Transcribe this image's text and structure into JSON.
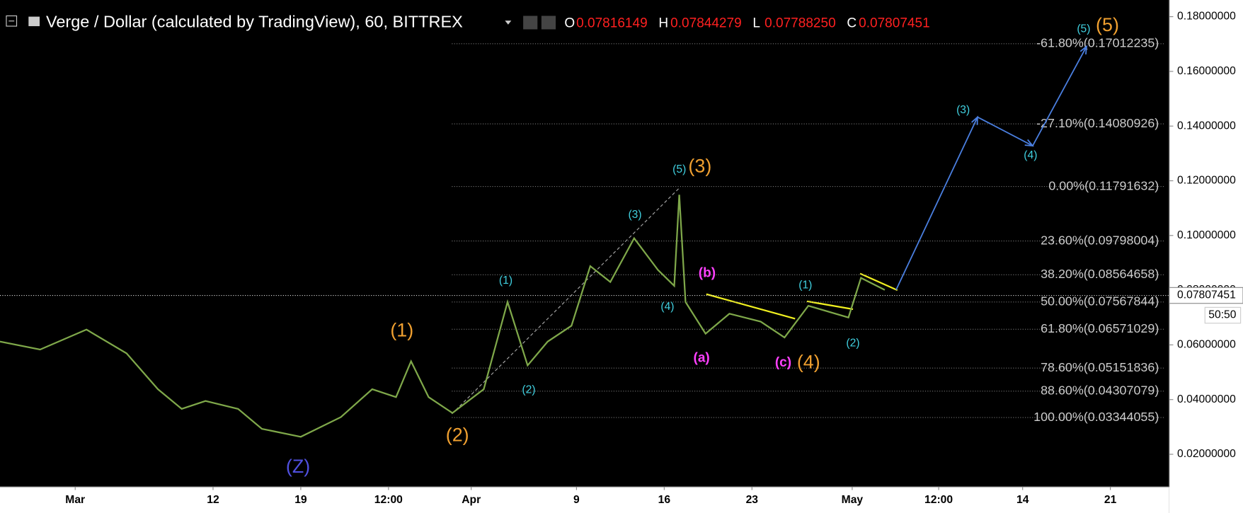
{
  "header": {
    "title": "Verge / Dollar (calculated by TradingView), 60, BITTREX",
    "ohlc": [
      {
        "key": "O",
        "value": "0.07816149"
      },
      {
        "key": "H",
        "value": "0.07844279"
      },
      {
        "key": "L",
        "value": "0.07788250"
      },
      {
        "key": "C",
        "value": "0.07807451"
      }
    ]
  },
  "chart_data": {
    "type": "line",
    "xlim": [
      -6,
      87.3
    ],
    "xticks": [
      {
        "value": 0,
        "label": "Mar"
      },
      {
        "value": 11,
        "label": "12"
      },
      {
        "value": 18,
        "label": "19"
      },
      {
        "value": 25,
        "label": "12:00"
      },
      {
        "value": 31.6,
        "label": "Apr"
      },
      {
        "value": 40,
        "label": "9"
      },
      {
        "value": 47,
        "label": "16"
      },
      {
        "value": 54,
        "label": "23"
      },
      {
        "value": 62,
        "label": "May"
      },
      {
        "value": 68.9,
        "label": "12:00"
      },
      {
        "value": 75.6,
        "label": "14"
      },
      {
        "value": 82.6,
        "label": "21"
      }
    ],
    "ylim": [
      0.0081,
      0.1861
    ],
    "yticks": [
      {
        "value": 0.02,
        "label": "0.02000000"
      },
      {
        "value": 0.04,
        "label": "0.04000000"
      },
      {
        "value": 0.06,
        "label": "0.06000000"
      },
      {
        "value": 0.08,
        "label": "0.08000000"
      },
      {
        "value": 0.1,
        "label": "0.10000000"
      },
      {
        "value": 0.12,
        "label": "0.12000000"
      },
      {
        "value": 0.14,
        "label": "0.14000000"
      },
      {
        "value": 0.16,
        "label": "0.16000000"
      },
      {
        "value": 0.18,
        "label": "0.18000000"
      }
    ],
    "series": [
      {
        "name": "Price",
        "color": "#7fa84a",
        "x": [
          -6,
          -2.8,
          0.9,
          4.1,
          6.6,
          8.5,
          10.4,
          13,
          14.9,
          18,
          21.2,
          23.7,
          25.6,
          26.8,
          28.2,
          30.1,
          32.6,
          34.5,
          36.1,
          37.7,
          39.6,
          41.1,
          42.7,
          44.6,
          46.5,
          47.8,
          48.2,
          48.7,
          50.3,
          52.2,
          54.7,
          56.6,
          58.5,
          61.7,
          62.7,
          64.6
        ],
        "values": [
          0.0612,
          0.0583,
          0.0656,
          0.0569,
          0.0438,
          0.0366,
          0.0395,
          0.0366,
          0.0293,
          0.0264,
          0.0336,
          0.0438,
          0.0409,
          0.054,
          0.0409,
          0.0351,
          0.0438,
          0.0757,
          0.0525,
          0.0612,
          0.067,
          0.0888,
          0.083,
          0.099,
          0.0874,
          0.0816,
          0.1149,
          0.0757,
          0.0641,
          0.0714,
          0.0685,
          0.0627,
          0.0743,
          0.07,
          0.0845,
          0.0801
        ]
      },
      {
        "name": "Projection",
        "color": "#4a7fe0",
        "x": [
          65.5,
          72,
          76.4,
          80.7
        ],
        "values": [
          0.0801,
          0.1433,
          0.1328,
          0.1691
        ]
      }
    ],
    "fib_levels": [
      {
        "value": 0.17012235,
        "label": "-61.80%(0.17012235)"
      },
      {
        "value": 0.14080926,
        "label": "-27.10%(0.14080926)"
      },
      {
        "value": 0.11791632,
        "label": "0.00%(0.11791632)"
      },
      {
        "value": 0.09798004,
        "label": "23.60%(0.09798004)"
      },
      {
        "value": 0.08564658,
        "label": "38.20%(0.08564658)"
      },
      {
        "value": 0.07567844,
        "label": "50.00%(0.07567844)"
      },
      {
        "value": 0.06571029,
        "label": "61.80%(0.06571029)"
      },
      {
        "value": 0.05151836,
        "label": "78.60%(0.05151836)"
      },
      {
        "value": 0.04307079,
        "label": "88.60%(0.04307079)"
      },
      {
        "value": 0.03344055,
        "label": "100.00%(0.03344055)"
      }
    ],
    "last_price": 0.07807451,
    "countdown": "50:50",
    "annotations": [
      {
        "text": "(1)",
        "color": "#f0a030"
      },
      {
        "text": "(2)",
        "color": "#f0a030"
      },
      {
        "text": "(3)",
        "color": "#f0a030"
      },
      {
        "text": "(4)",
        "color": "#f0a030"
      },
      {
        "text": "(5)",
        "color": "#f0a030"
      },
      {
        "text": "(Z)",
        "color": "#5050e0"
      },
      {
        "text": "(1)",
        "color": "#40d0e0"
      },
      {
        "text": "(2)",
        "color": "#40d0e0"
      },
      {
        "text": "(3)",
        "color": "#40d0e0"
      },
      {
        "text": "(4)",
        "color": "#40d0e0"
      },
      {
        "text": "(5)",
        "color": "#40d0e0"
      },
      {
        "text": "(1)",
        "color": "#40d0e0"
      },
      {
        "text": "(2)",
        "color": "#40d0e0"
      },
      {
        "text": "(3)",
        "color": "#40d0e0"
      },
      {
        "text": "(4)",
        "color": "#40d0e0"
      },
      {
        "text": "(5)",
        "color": "#40d0e0"
      },
      {
        "text": "(b)",
        "color": "#ff40ff"
      },
      {
        "text": "(a)",
        "color": "#ff40ff"
      },
      {
        "text": "(c)",
        "color": "#ff40ff"
      }
    ]
  }
}
